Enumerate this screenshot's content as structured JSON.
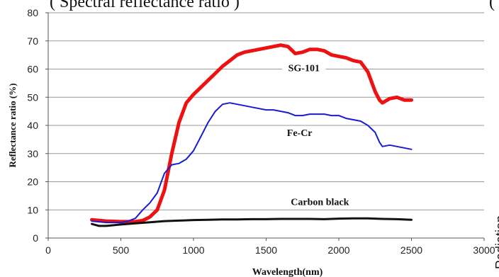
{
  "header": {
    "title": "( Spectral reflectance ratio )",
    "right_mark": "("
  },
  "chart_data": {
    "type": "line",
    "xlabel": "Wavelength(nm)",
    "ylabel": "Reflectance ratio (%)",
    "right_edge_label": "Radiation ...",
    "xlim": [
      0,
      3000
    ],
    "ylim": [
      0,
      80
    ],
    "xticks": [
      0,
      500,
      1000,
      1500,
      2000,
      2500,
      3000
    ],
    "yticks": [
      0,
      10,
      20,
      30,
      40,
      50,
      60,
      70,
      80
    ],
    "grid": true,
    "series": [
      {
        "name": "SG-101",
        "color": "#ee1111",
        "x": [
          300,
          400,
          500,
          600,
          650,
          700,
          750,
          800,
          850,
          900,
          950,
          1000,
          1050,
          1100,
          1150,
          1200,
          1250,
          1300,
          1350,
          1400,
          1450,
          1500,
          1550,
          1600,
          1650,
          1700,
          1750,
          1800,
          1850,
          1900,
          1950,
          2000,
          2050,
          2100,
          2150,
          2200,
          2250,
          2280,
          2300,
          2350,
          2400,
          2450,
          2500
        ],
        "y": [
          6.5,
          6,
          5.8,
          5.8,
          6.2,
          7.5,
          10,
          17,
          30,
          41,
          48,
          51,
          53.5,
          56,
          58.5,
          61,
          63,
          65,
          66,
          66.5,
          67,
          67.5,
          68,
          68.5,
          68,
          65.5,
          66,
          67,
          67,
          66.5,
          65,
          64.5,
          64,
          63,
          62.5,
          59,
          52,
          49,
          48,
          49.5,
          50,
          49,
          49
        ]
      },
      {
        "name": "Fe-Cr",
        "color": "#1a1ad6",
        "x": [
          300,
          400,
          500,
          550,
          600,
          650,
          700,
          750,
          800,
          850,
          900,
          950,
          1000,
          1050,
          1100,
          1150,
          1200,
          1250,
          1300,
          1350,
          1400,
          1450,
          1500,
          1550,
          1600,
          1650,
          1700,
          1750,
          1800,
          1850,
          1900,
          1950,
          2000,
          2050,
          2100,
          2150,
          2200,
          2250,
          2280,
          2300,
          2350,
          2400,
          2450,
          2500
        ],
        "y": [
          6,
          5.5,
          5.5,
          6,
          7,
          10,
          12.5,
          16,
          23,
          26,
          26.5,
          28,
          31,
          36,
          41,
          45,
          47.5,
          48,
          47.5,
          47,
          46.5,
          46,
          45.5,
          45.5,
          45,
          44.5,
          43.5,
          43.5,
          44,
          44,
          44,
          43.5,
          43.5,
          42.5,
          42,
          41.5,
          40,
          37.5,
          34,
          32.5,
          33,
          32.5,
          32,
          31.5
        ]
      },
      {
        "name": "Carbon black",
        "color": "#111111",
        "x": [
          300,
          350,
          400,
          500,
          600,
          700,
          800,
          900,
          1000,
          1100,
          1200,
          1300,
          1400,
          1500,
          1600,
          1700,
          1800,
          1900,
          2000,
          2100,
          2200,
          2300,
          2400,
          2500
        ],
        "y": [
          5,
          4.3,
          4.3,
          4.8,
          5.2,
          5.6,
          6,
          6.2,
          6.4,
          6.5,
          6.6,
          6.6,
          6.7,
          6.7,
          6.8,
          6.8,
          6.8,
          6.7,
          6.9,
          7,
          7,
          6.8,
          6.7,
          6.5
        ]
      }
    ],
    "annotations": [
      {
        "text": "SG-101",
        "x": 1760,
        "y": 59.5
      },
      {
        "text": "Fe-Cr",
        "x": 1730,
        "y": 36.5
      },
      {
        "text": "Carbon black",
        "x": 1870,
        "y": 12
      }
    ]
  }
}
